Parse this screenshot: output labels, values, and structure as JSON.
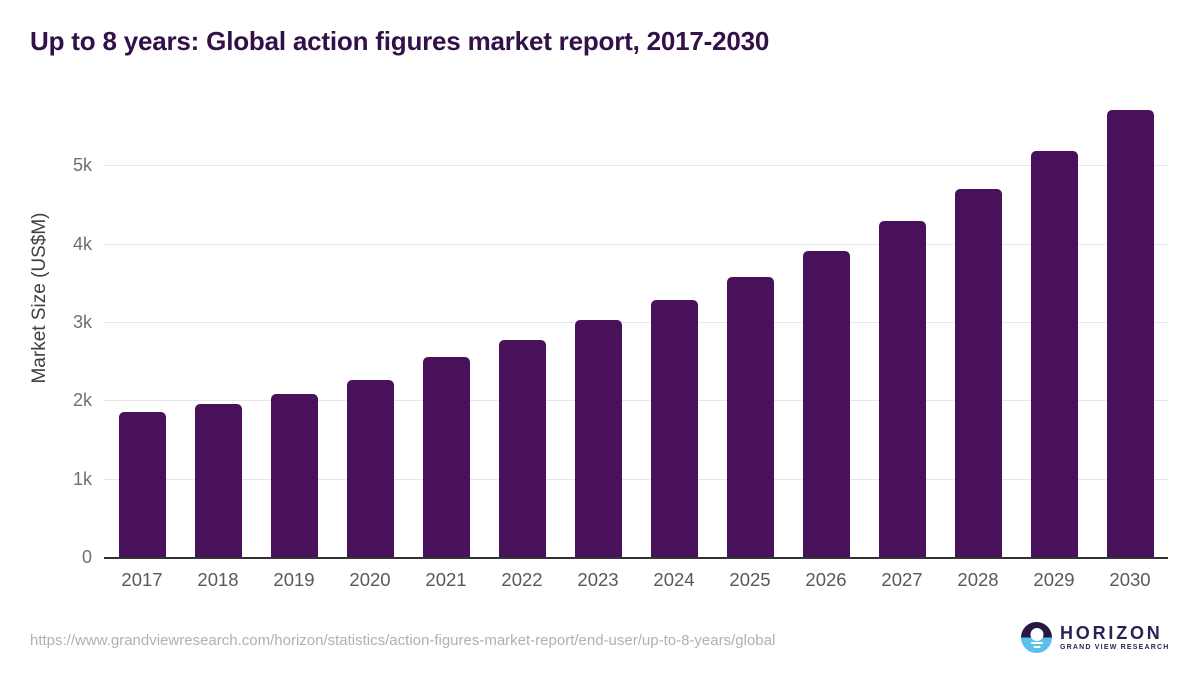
{
  "page": {
    "title": "Up to 8 years: Global action figures market report, 2017-2030"
  },
  "chart_data": {
    "type": "bar",
    "title": "Up to 8 years: Global action figures market report, 2017-2030",
    "categories": [
      "2017",
      "2018",
      "2019",
      "2020",
      "2021",
      "2022",
      "2023",
      "2024",
      "2025",
      "2026",
      "2027",
      "2028",
      "2029",
      "2030"
    ],
    "values": [
      1850,
      1950,
      2080,
      2260,
      2550,
      2770,
      3020,
      3280,
      3580,
      3910,
      4290,
      4700,
      5180,
      5700
    ],
    "series_name": "Market Size",
    "xlabel": "",
    "ylabel": "Market Size (US$M)",
    "ylim": [
      0,
      5834
    ],
    "yticks": [
      {
        "value": 0,
        "label": "0"
      },
      {
        "value": 1000,
        "label": "1k"
      },
      {
        "value": 2000,
        "label": "2k"
      },
      {
        "value": 3000,
        "label": "3k"
      },
      {
        "value": 4000,
        "label": "4k"
      },
      {
        "value": 5000,
        "label": "5k"
      }
    ],
    "grid": "horizontal-only",
    "legend": "none",
    "bar_color": "#4a115b"
  },
  "footer": {
    "source_url": "https://www.grandviewresearch.com/horizon/statistics/action-figures-market-report/end-user/up-to-8-years/global",
    "logo": {
      "brand": "HORIZON",
      "tagline": "GRAND VIEW RESEARCH"
    }
  },
  "colors": {
    "title": "#331048",
    "bar": "#4a115b",
    "grid_line": "#e7e7e7",
    "axis_line": "#333333",
    "tick_label": "#6f6f6f",
    "x_label": "#59595b",
    "y_axis_title": "#3f3f3f",
    "url_text": "#b1b0b2",
    "logo_dark": "#261843",
    "logo_blue": "#5ac0ed",
    "logo_text": "#2e2156"
  }
}
